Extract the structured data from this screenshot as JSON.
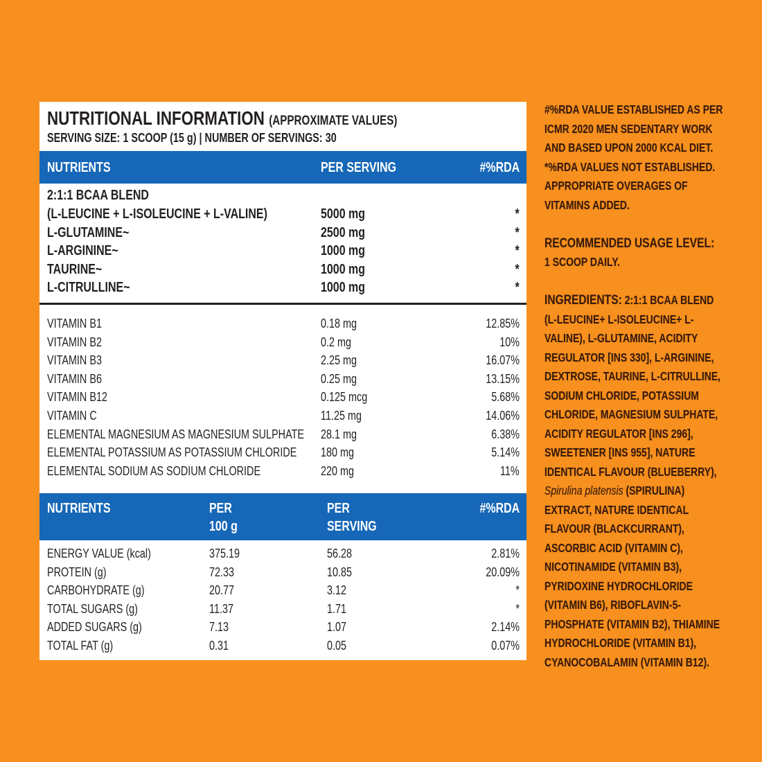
{
  "header": {
    "title": "NUTRITIONAL INFORMATION",
    "title_note": "(APPROXIMATE VALUES)",
    "serving": "SERVING SIZE: 1 SCOOP (15 g) | NUMBER OF SERVINGS: 30"
  },
  "table1": {
    "headers": [
      "NUTRIENTS",
      "PER SERVING",
      "#%RDA"
    ],
    "blend_label": "2:1:1 BCAA BLEND",
    "amino": [
      {
        "name": "(L-LEUCINE + L-ISOLEUCINE + L-VALINE)",
        "per": "5000 mg",
        "rda": "*"
      },
      {
        "name": "L-GLUTAMINE~",
        "per": "2500 mg",
        "rda": "*"
      },
      {
        "name": "L-ARGININE~",
        "per": "1000 mg",
        "rda": "*"
      },
      {
        "name": "TAURINE~",
        "per": "1000 mg",
        "rda": "*"
      },
      {
        "name": "L-CITRULLINE~",
        "per": "1000 mg",
        "rda": "*"
      }
    ],
    "vitamins": [
      {
        "name": "VITAMIN B1",
        "per": "0.18 mg",
        "rda": "12.85%"
      },
      {
        "name": "VITAMIN B2",
        "per": "0.2 mg",
        "rda": "10%"
      },
      {
        "name": "VITAMIN B3",
        "per": "2.25 mg",
        "rda": "16.07%"
      },
      {
        "name": "VITAMIN B6",
        "per": "0.25 mg",
        "rda": "13.15%"
      },
      {
        "name": "VITAMIN B12",
        "per": "0.125 mcg",
        "rda": "5.68%"
      },
      {
        "name": "VITAMIN C",
        "per": "11.25 mg",
        "rda": "14.06%"
      },
      {
        "name": "ELEMENTAL MAGNESIUM AS MAGNESIUM SULPHATE",
        "per": "28.1 mg",
        "rda": "6.38%"
      },
      {
        "name": "ELEMENTAL POTASSIUM AS POTASSIUM CHLORIDE",
        "per": "180 mg",
        "rda": "5.14%"
      },
      {
        "name": "ELEMENTAL SODIUM AS SODIUM CHLORIDE",
        "per": "220 mg",
        "rda": "11%"
      }
    ]
  },
  "table2": {
    "headers": {
      "nutrients": "NUTRIENTS",
      "per100_1": "PER",
      "per100_2": "100 g",
      "serving_1": "PER",
      "serving_2": "SERVING",
      "rda": "#%RDA"
    },
    "rows": [
      {
        "name": "ENERGY VALUE (kcal)",
        "per100": "375.19",
        "per": "56.28",
        "rda": "2.81%"
      },
      {
        "name": "PROTEIN (g)",
        "per100": "72.33",
        "per": "10.85",
        "rda": "20.09%"
      },
      {
        "name": "CARBOHYDRATE (g)",
        "per100": "20.77",
        "per": "3.12",
        "rda": "*"
      },
      {
        "name": "TOTAL SUGARS (g)",
        "per100": "11.37",
        "per": "1.71",
        "rda": "*"
      },
      {
        "name": "ADDED SUGARS (g)",
        "per100": "7.13",
        "per": "1.07",
        "rda": "2.14%"
      },
      {
        "name": "TOTAL FAT (g)",
        "per100": "0.31",
        "per": "0.05",
        "rda": "0.07%"
      }
    ]
  },
  "side": {
    "rda_note": "#%RDA VALUE ESTABLISHED AS PER ICMR 2020 MEN SEDENTARY WORK AND BASED UPON 2000 KCAL DIET. *%RDA VALUES NOT ESTABLISHED. APPROPRIATE OVERAGES OF VITAMINS ADDED.",
    "usage_label": "RECOMMENDED USAGE LEVEL:",
    "usage": "1 SCOOP DAILY.",
    "ingredients_label": "INGREDIENTS:",
    "ingredients_1": " 2:1:1 BCAA BLEND (L-LEUCINE+ L-ISOLEUCINE+ L-VALINE), L-GLUTAMINE, ACIDITY REGULATOR [INS 330], L-ARGININE, DEXTROSE, TAURINE, L-CITRULLINE, SODIUM CHLORIDE, POTASSIUM CHLORIDE, MAGNESIUM SULPHATE, ACIDITY REGULATOR [INS 296], SWEETENER [INS 955], NATURE IDENTICAL FLAVOUR (BLUEBERRY), ",
    "ingredients_italic": "Spirulina platensis",
    "ingredients_2": " (SPIRULINA) EXTRACT, NATURE IDENTICAL FLAVOUR (BLACKCURRANT), ASCORBIC ACID (VITAMIN C), NICOTINAMIDE (VITAMIN B3), PYRIDOXINE HYDROCHLORIDE (VITAMIN B6), RIBOFLAVIN-5-PHOSPHATE (VITAMIN B2), THIAMINE HYDROCHLORIDE (VITAMIN B1), CYANOCOBALAMIN (VITAMIN B12)."
  },
  "colors": {
    "background": "#f7901e",
    "header_bar": "#1667b7"
  }
}
